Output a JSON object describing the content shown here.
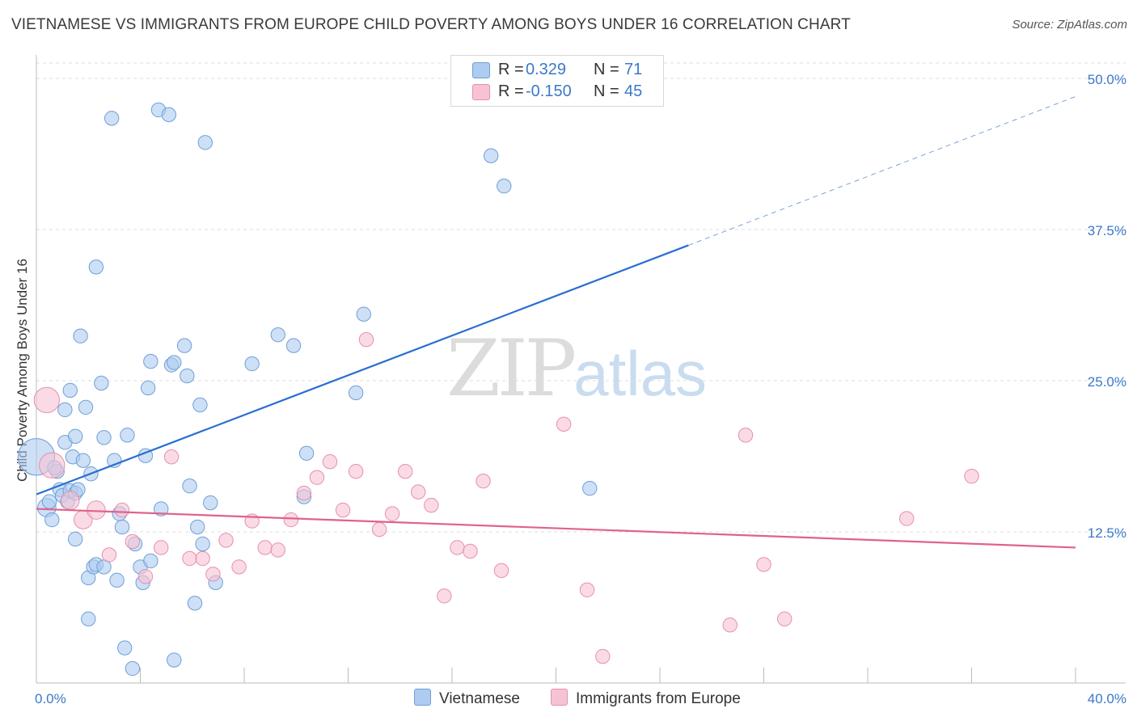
{
  "title": "VIETNAMESE VS IMMIGRANTS FROM EUROPE CHILD POVERTY AMONG BOYS UNDER 16 CORRELATION CHART",
  "source": "Source: ZipAtlas.com",
  "watermark": {
    "zip": "ZIP",
    "atlas": "atlas"
  },
  "legend": {
    "rows": [
      {
        "r_label": "R =",
        "r_value": "0.329",
        "n_label": "N =",
        "n_value": "71",
        "color": "#aecbf0",
        "border": "#6e9fd8"
      },
      {
        "r_label": "R =",
        "r_value": "-0.150",
        "n_label": "N =",
        "n_value": "45",
        "color": "#f7c3d3",
        "border": "#e78fab"
      }
    ]
  },
  "bottom_legend": [
    "Vietnamese",
    "Immigrants from Europe"
  ],
  "chart_data": {
    "type": "scatter",
    "title": "VIETNAMESE VS IMMIGRANTS FROM EUROPE CHILD POVERTY AMONG BOYS UNDER 16 CORRELATION CHART",
    "xlabel": "",
    "ylabel": "Child Poverty Among Boys Under 16",
    "xlim": [
      0,
      40
    ],
    "ylim": [
      0,
      50
    ],
    "x_tick_labels": [
      "0.0%",
      "40.0%"
    ],
    "y_ticks": [
      12.5,
      25.0,
      37.5,
      50.0
    ],
    "y_tick_labels": [
      "12.5%",
      "25.0%",
      "37.5%",
      "50.0%"
    ],
    "grid": true,
    "series": [
      {
        "name": "Vietnamese",
        "color": "#6e9fd8",
        "fill": "#aecbf0",
        "trend": {
          "x": [
            0,
            25.1
          ],
          "y": [
            15.6,
            36.2
          ],
          "dash_to": [
            40,
            48.5
          ]
        },
        "points": [
          {
            "x": 0.0,
            "y": 18.7,
            "s": 26
          },
          {
            "x": 0.4,
            "y": 14.5,
            "s": 13
          },
          {
            "x": 0.5,
            "y": 15.0,
            "s": 10
          },
          {
            "x": 0.6,
            "y": 13.5,
            "s": 10
          },
          {
            "x": 0.8,
            "y": 17.5,
            "s": 10
          },
          {
            "x": 0.9,
            "y": 16.0,
            "s": 10
          },
          {
            "x": 1.0,
            "y": 15.5,
            "s": 10
          },
          {
            "x": 1.1,
            "y": 19.9,
            "s": 10
          },
          {
            "x": 1.2,
            "y": 15.0,
            "s": 10
          },
          {
            "x": 1.3,
            "y": 15.9,
            "s": 10
          },
          {
            "x": 1.5,
            "y": 15.7,
            "s": 10
          },
          {
            "x": 1.1,
            "y": 22.6,
            "s": 10
          },
          {
            "x": 1.3,
            "y": 24.2,
            "s": 10
          },
          {
            "x": 1.4,
            "y": 18.7,
            "s": 10
          },
          {
            "x": 1.5,
            "y": 11.9,
            "s": 10
          },
          {
            "x": 1.5,
            "y": 20.4,
            "s": 10
          },
          {
            "x": 1.6,
            "y": 16.0,
            "s": 10
          },
          {
            "x": 1.7,
            "y": 28.7,
            "s": 10
          },
          {
            "x": 1.8,
            "y": 18.4,
            "s": 10
          },
          {
            "x": 1.9,
            "y": 22.8,
            "s": 10
          },
          {
            "x": 2.0,
            "y": 8.7,
            "s": 10
          },
          {
            "x": 2.0,
            "y": 5.3,
            "s": 10
          },
          {
            "x": 2.1,
            "y": 17.3,
            "s": 10
          },
          {
            "x": 2.2,
            "y": 9.6,
            "s": 10
          },
          {
            "x": 2.3,
            "y": 9.8,
            "s": 10
          },
          {
            "x": 2.3,
            "y": 34.4,
            "s": 10
          },
          {
            "x": 2.5,
            "y": 24.8,
            "s": 10
          },
          {
            "x": 2.6,
            "y": 20.3,
            "s": 10
          },
          {
            "x": 2.6,
            "y": 9.6,
            "s": 10
          },
          {
            "x": 2.9,
            "y": 46.7,
            "s": 10
          },
          {
            "x": 3.0,
            "y": 18.4,
            "s": 10
          },
          {
            "x": 3.1,
            "y": 8.5,
            "s": 10
          },
          {
            "x": 3.2,
            "y": 14.0,
            "s": 10
          },
          {
            "x": 3.3,
            "y": 12.9,
            "s": 10
          },
          {
            "x": 3.4,
            "y": 2.9,
            "s": 10
          },
          {
            "x": 3.5,
            "y": 20.5,
            "s": 10
          },
          {
            "x": 3.7,
            "y": 1.2,
            "s": 10
          },
          {
            "x": 3.8,
            "y": 11.5,
            "s": 10
          },
          {
            "x": 4.0,
            "y": 9.6,
            "s": 10
          },
          {
            "x": 4.1,
            "y": 8.3,
            "s": 10
          },
          {
            "x": 4.2,
            "y": 18.8,
            "s": 10
          },
          {
            "x": 4.3,
            "y": 24.4,
            "s": 10
          },
          {
            "x": 4.4,
            "y": 10.1,
            "s": 10
          },
          {
            "x": 4.4,
            "y": 26.6,
            "s": 10
          },
          {
            "x": 4.7,
            "y": 47.4,
            "s": 10
          },
          {
            "x": 4.8,
            "y": 14.4,
            "s": 10
          },
          {
            "x": 5.1,
            "y": 47.0,
            "s": 10
          },
          {
            "x": 5.2,
            "y": 26.3,
            "s": 10
          },
          {
            "x": 5.3,
            "y": 26.5,
            "s": 10
          },
          {
            "x": 5.3,
            "y": 1.9,
            "s": 10
          },
          {
            "x": 5.7,
            "y": 27.9,
            "s": 10
          },
          {
            "x": 5.8,
            "y": 25.4,
            "s": 10
          },
          {
            "x": 5.9,
            "y": 16.3,
            "s": 10
          },
          {
            "x": 6.1,
            "y": 6.6,
            "s": 10
          },
          {
            "x": 6.2,
            "y": 12.9,
            "s": 10
          },
          {
            "x": 6.3,
            "y": 23.0,
            "s": 10
          },
          {
            "x": 6.4,
            "y": 11.5,
            "s": 10
          },
          {
            "x": 6.5,
            "y": 44.7,
            "s": 10
          },
          {
            "x": 6.7,
            "y": 14.9,
            "s": 10
          },
          {
            "x": 6.9,
            "y": 8.3,
            "s": 10
          },
          {
            "x": 8.3,
            "y": 26.4,
            "s": 10
          },
          {
            "x": 9.3,
            "y": 28.8,
            "s": 10
          },
          {
            "x": 9.9,
            "y": 27.9,
            "s": 10
          },
          {
            "x": 10.3,
            "y": 15.4,
            "s": 10
          },
          {
            "x": 10.4,
            "y": 19.0,
            "s": 10
          },
          {
            "x": 12.3,
            "y": 24.0,
            "s": 10
          },
          {
            "x": 12.6,
            "y": 30.5,
            "s": 10
          },
          {
            "x": 17.5,
            "y": 43.6,
            "s": 10
          },
          {
            "x": 18.0,
            "y": 41.1,
            "s": 10
          },
          {
            "x": 21.3,
            "y": 16.1,
            "s": 10
          },
          {
            "x": 0.7,
            "y": 17.8,
            "s": 10
          }
        ]
      },
      {
        "name": "Immigrants from Europe",
        "color": "#e78fab",
        "fill": "#f7c3d3",
        "trend": {
          "x": [
            0,
            40
          ],
          "y": [
            14.4,
            11.2
          ]
        },
        "points": [
          {
            "x": 0.4,
            "y": 23.4,
            "s": 18
          },
          {
            "x": 0.6,
            "y": 18.0,
            "s": 18
          },
          {
            "x": 1.3,
            "y": 15.1,
            "s": 13
          },
          {
            "x": 1.8,
            "y": 13.5,
            "s": 13
          },
          {
            "x": 2.3,
            "y": 14.3,
            "s": 13
          },
          {
            "x": 2.8,
            "y": 10.6,
            "s": 10
          },
          {
            "x": 3.3,
            "y": 14.3,
            "s": 10
          },
          {
            "x": 3.7,
            "y": 11.7,
            "s": 10
          },
          {
            "x": 4.2,
            "y": 8.8,
            "s": 10
          },
          {
            "x": 4.8,
            "y": 11.2,
            "s": 10
          },
          {
            "x": 5.2,
            "y": 18.7,
            "s": 10
          },
          {
            "x": 5.9,
            "y": 10.3,
            "s": 10
          },
          {
            "x": 6.4,
            "y": 10.3,
            "s": 10
          },
          {
            "x": 6.8,
            "y": 9.0,
            "s": 10
          },
          {
            "x": 7.3,
            "y": 11.8,
            "s": 10
          },
          {
            "x": 7.8,
            "y": 9.6,
            "s": 10
          },
          {
            "x": 8.3,
            "y": 13.4,
            "s": 10
          },
          {
            "x": 8.8,
            "y": 11.2,
            "s": 10
          },
          {
            "x": 9.3,
            "y": 11.0,
            "s": 10
          },
          {
            "x": 9.8,
            "y": 13.5,
            "s": 10
          },
          {
            "x": 10.3,
            "y": 15.7,
            "s": 10
          },
          {
            "x": 10.8,
            "y": 17.0,
            "s": 10
          },
          {
            "x": 11.3,
            "y": 18.3,
            "s": 10
          },
          {
            "x": 11.8,
            "y": 14.3,
            "s": 10
          },
          {
            "x": 12.3,
            "y": 17.5,
            "s": 10
          },
          {
            "x": 12.7,
            "y": 28.4,
            "s": 10
          },
          {
            "x": 13.2,
            "y": 12.7,
            "s": 10
          },
          {
            "x": 13.7,
            "y": 14.0,
            "s": 10
          },
          {
            "x": 14.2,
            "y": 17.5,
            "s": 10
          },
          {
            "x": 14.7,
            "y": 15.8,
            "s": 10
          },
          {
            "x": 15.2,
            "y": 14.7,
            "s": 10
          },
          {
            "x": 15.7,
            "y": 7.2,
            "s": 10
          },
          {
            "x": 16.2,
            "y": 11.2,
            "s": 10
          },
          {
            "x": 16.7,
            "y": 10.9,
            "s": 10
          },
          {
            "x": 17.2,
            "y": 16.7,
            "s": 10
          },
          {
            "x": 17.9,
            "y": 9.3,
            "s": 10
          },
          {
            "x": 20.3,
            "y": 21.4,
            "s": 10
          },
          {
            "x": 21.2,
            "y": 7.7,
            "s": 10
          },
          {
            "x": 21.8,
            "y": 2.2,
            "s": 10
          },
          {
            "x": 26.7,
            "y": 4.8,
            "s": 10
          },
          {
            "x": 27.3,
            "y": 20.5,
            "s": 10
          },
          {
            "x": 28.0,
            "y": 9.8,
            "s": 10
          },
          {
            "x": 28.8,
            "y": 5.3,
            "s": 10
          },
          {
            "x": 33.5,
            "y": 13.6,
            "s": 10
          },
          {
            "x": 36.0,
            "y": 17.1,
            "s": 10
          }
        ]
      }
    ]
  }
}
